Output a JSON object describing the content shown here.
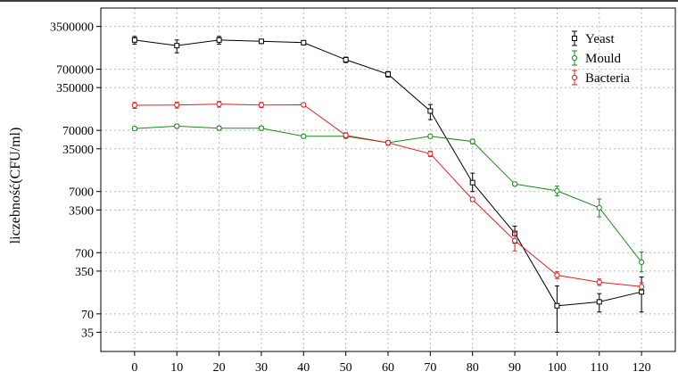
{
  "chart_data": {
    "type": "line",
    "ylabel": "liczebność(CFU/ml)",
    "xlabel": "",
    "y_scale": "log",
    "x": [
      0,
      10,
      20,
      30,
      40,
      50,
      60,
      70,
      80,
      90,
      100,
      110,
      120
    ],
    "x_ticks": [
      "0",
      "10",
      "20",
      "30",
      "40",
      "50",
      "60",
      "70",
      "80",
      "90",
      "100",
      "110",
      "120"
    ],
    "y_ticks": [
      {
        "value": 3500000,
        "label": "3500000"
      },
      {
        "value": 700000,
        "label": "700000"
      },
      {
        "value": 350000,
        "label": "350000"
      },
      {
        "value": 70000,
        "label": "70000"
      },
      {
        "value": 35000,
        "label": "35000"
      },
      {
        "value": 7000,
        "label": "7000"
      },
      {
        "value": 3500,
        "label": "3500"
      },
      {
        "value": 700,
        "label": "700"
      },
      {
        "value": 350,
        "label": "350"
      },
      {
        "value": 70,
        "label": "70"
      },
      {
        "value": 35,
        "label": "35"
      }
    ],
    "xlim": [
      -8,
      128
    ],
    "ylim": [
      17,
      7000000
    ],
    "grid": true,
    "legend_position": "top-right",
    "series": [
      {
        "name": "Yeast",
        "color": "#000000",
        "marker": "square",
        "values": [
          2100000,
          1700000,
          2100000,
          2000000,
          1900000,
          1000000,
          580000,
          145000,
          9800,
          1450,
          95,
          110,
          160
        ],
        "err_low": [
          1800000,
          1300000,
          1800000,
          1850000,
          1750000,
          900000,
          520000,
          105000,
          7000,
          1000,
          35,
          75,
          75
        ],
        "err_high": [
          2400000,
          2100000,
          2400000,
          2150000,
          2050000,
          1100000,
          640000,
          185000,
          14000,
          1900,
          200,
          150,
          280
        ]
      },
      {
        "name": "Mould",
        "color": "#1a8a1a",
        "marker": "circle",
        "values": [
          75000,
          82000,
          76000,
          76000,
          56000,
          56000,
          44000,
          56000,
          46000,
          9300,
          7200,
          3800,
          490
        ],
        "err_low": [
          70000,
          76000,
          70000,
          70000,
          52000,
          52000,
          41000,
          52000,
          42000,
          8600,
          6000,
          2700,
          340
        ],
        "err_high": [
          80000,
          88000,
          82000,
          82000,
          60000,
          60000,
          47000,
          60000,
          50000,
          10000,
          8600,
          5300,
          720
        ]
      },
      {
        "name": "Bacteria",
        "color": "#e02020",
        "marker": "circle",
        "values": [
          180000,
          182000,
          188000,
          182000,
          183000,
          58000,
          44000,
          29000,
          5200,
          1100,
          300,
          230,
          195
        ],
        "err_low": [
          160000,
          162000,
          168000,
          165000,
          170000,
          52000,
          40000,
          26000,
          4800,
          750,
          265,
          205,
          170
        ],
        "err_high": [
          200000,
          202000,
          208000,
          200000,
          196000,
          64000,
          48000,
          32000,
          5600,
          1500,
          340,
          260,
          225
        ]
      }
    ]
  }
}
